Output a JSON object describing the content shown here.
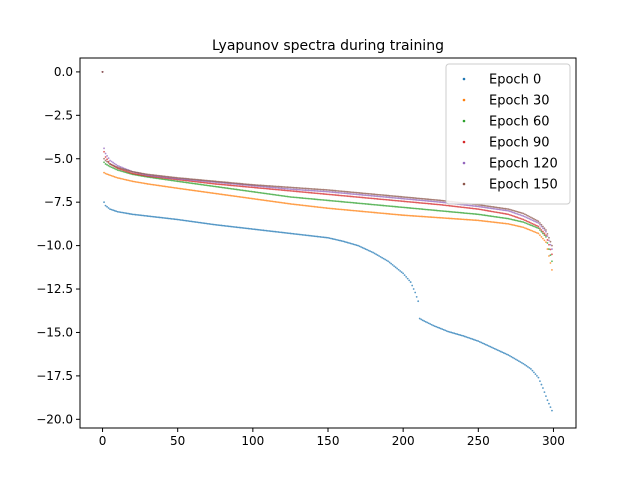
{
  "chart_data": {
    "type": "scatter",
    "title": "Lyapunov spectra during training",
    "xlabel": "",
    "ylabel": "",
    "xlim": [
      -15,
      315
    ],
    "ylim": [
      -20.5,
      0.8
    ],
    "xticks": [
      0,
      50,
      100,
      150,
      200,
      250,
      300
    ],
    "yticks": [
      0.0,
      -2.5,
      -5.0,
      -7.5,
      -10.0,
      -12.5,
      -15.0,
      -17.5,
      -20.0
    ],
    "xtick_labels": [
      "0",
      "50",
      "100",
      "150",
      "200",
      "250",
      "300"
    ],
    "ytick_labels": [
      "0.0",
      "−2.5",
      "−5.0",
      "−7.5",
      "−10.0",
      "−12.5",
      "−15.0",
      "−17.5",
      "−20.0"
    ],
    "legend_position": "top-right",
    "grid": false,
    "n_points": 300,
    "series": [
      {
        "name": "Epoch 0",
        "color": "#1f77b4",
        "x": [
          0,
          1,
          2,
          5,
          10,
          20,
          30,
          50,
          75,
          100,
          125,
          150,
          160,
          170,
          180,
          190,
          200,
          205,
          208,
          210,
          211,
          213,
          220,
          230,
          240,
          250,
          260,
          270,
          280,
          285,
          290,
          293,
          296,
          299
        ],
        "y": [
          0.0,
          -7.5,
          -7.7,
          -7.9,
          -8.05,
          -8.2,
          -8.3,
          -8.5,
          -8.8,
          -9.05,
          -9.3,
          -9.55,
          -9.75,
          -10.0,
          -10.4,
          -10.9,
          -11.6,
          -12.1,
          -12.7,
          -13.2,
          -14.2,
          -14.3,
          -14.6,
          -14.95,
          -15.2,
          -15.5,
          -15.9,
          -16.3,
          -16.8,
          -17.1,
          -17.6,
          -18.2,
          -18.9,
          -19.5
        ]
      },
      {
        "name": "Epoch 30",
        "color": "#ff7f0e",
        "x": [
          0,
          1,
          2,
          5,
          10,
          20,
          30,
          50,
          75,
          100,
          125,
          150,
          175,
          200,
          225,
          250,
          270,
          280,
          290,
          295,
          299
        ],
        "y": [
          0.0,
          -5.8,
          -5.85,
          -5.95,
          -6.1,
          -6.3,
          -6.45,
          -6.7,
          -7.0,
          -7.3,
          -7.6,
          -7.85,
          -8.05,
          -8.25,
          -8.4,
          -8.55,
          -8.75,
          -8.95,
          -9.3,
          -9.8,
          -11.4
        ]
      },
      {
        "name": "Epoch 60",
        "color": "#2ca02c",
        "x": [
          0,
          1,
          2,
          5,
          10,
          20,
          30,
          50,
          75,
          100,
          125,
          150,
          175,
          200,
          225,
          250,
          270,
          280,
          290,
          295,
          299
        ],
        "y": [
          0.0,
          -5.2,
          -5.3,
          -5.45,
          -5.65,
          -5.9,
          -6.05,
          -6.3,
          -6.6,
          -6.9,
          -7.2,
          -7.4,
          -7.6,
          -7.8,
          -8.0,
          -8.2,
          -8.45,
          -8.65,
          -9.0,
          -9.5,
          -10.9
        ]
      },
      {
        "name": "Epoch 90",
        "color": "#d62728",
        "x": [
          0,
          1,
          2,
          5,
          10,
          20,
          30,
          50,
          75,
          100,
          125,
          150,
          175,
          200,
          225,
          250,
          270,
          280,
          290,
          295,
          299
        ],
        "y": [
          0.0,
          -4.6,
          -4.9,
          -5.3,
          -5.55,
          -5.85,
          -6.0,
          -6.2,
          -6.45,
          -6.65,
          -6.85,
          -7.05,
          -7.25,
          -7.45,
          -7.65,
          -7.9,
          -8.2,
          -8.5,
          -8.9,
          -9.4,
          -10.5
        ]
      },
      {
        "name": "Epoch 120",
        "color": "#9467bd",
        "x": [
          0,
          1,
          2,
          5,
          10,
          20,
          30,
          50,
          75,
          100,
          125,
          150,
          175,
          200,
          225,
          250,
          270,
          280,
          290,
          295,
          299
        ],
        "y": [
          0.0,
          -4.4,
          -4.7,
          -5.1,
          -5.4,
          -5.75,
          -5.95,
          -6.15,
          -6.35,
          -6.55,
          -6.75,
          -6.9,
          -7.1,
          -7.3,
          -7.5,
          -7.75,
          -8.0,
          -8.3,
          -8.7,
          -9.2,
          -10.2
        ]
      },
      {
        "name": "Epoch 150",
        "color": "#8c564b",
        "x": [
          0,
          1,
          2,
          5,
          10,
          20,
          30,
          50,
          75,
          100,
          125,
          150,
          175,
          200,
          225,
          250,
          270,
          280,
          290,
          295,
          299
        ],
        "y": [
          0.0,
          -5.0,
          -5.1,
          -5.3,
          -5.5,
          -5.75,
          -5.9,
          -6.1,
          -6.3,
          -6.5,
          -6.65,
          -6.8,
          -7.0,
          -7.2,
          -7.4,
          -7.65,
          -7.9,
          -8.15,
          -8.6,
          -9.1,
          -10.0
        ]
      }
    ]
  }
}
